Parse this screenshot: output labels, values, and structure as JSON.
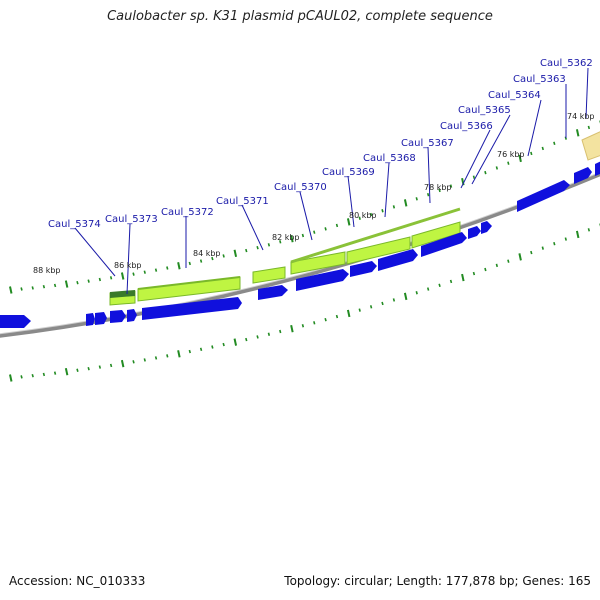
{
  "title": "Caulobacter sp. K31 plasmid pCAUL02, complete sequence",
  "footer": {
    "accession": "Accession: NC_010333",
    "summary": "Topology: circular; Length: 177,878 bp; Genes: 165"
  },
  "tick_labels": [
    "74 kbp",
    "76 kbp",
    "78 kbp",
    "80 kbp",
    "82 kbp",
    "84 kbp",
    "86 kbp",
    "88 kbp"
  ],
  "gene_labels": [
    "Caul_5362",
    "Caul_5363",
    "Caul_5364",
    "Caul_5365",
    "Caul_5366",
    "Caul_5367",
    "Caul_5368",
    "Caul_5369",
    "Caul_5370",
    "Caul_5371",
    "Caul_5372",
    "Caul_5373",
    "Caul_5374"
  ],
  "colors": {
    "gene": "#1010dd",
    "feature_fill": "#bff542",
    "feature_stroke": "#7ab82a",
    "ruler_mark": "#228b22",
    "backbone": "#8a8a8a",
    "label": "#1a1aa8",
    "highlight": "#f3e3a0"
  }
}
